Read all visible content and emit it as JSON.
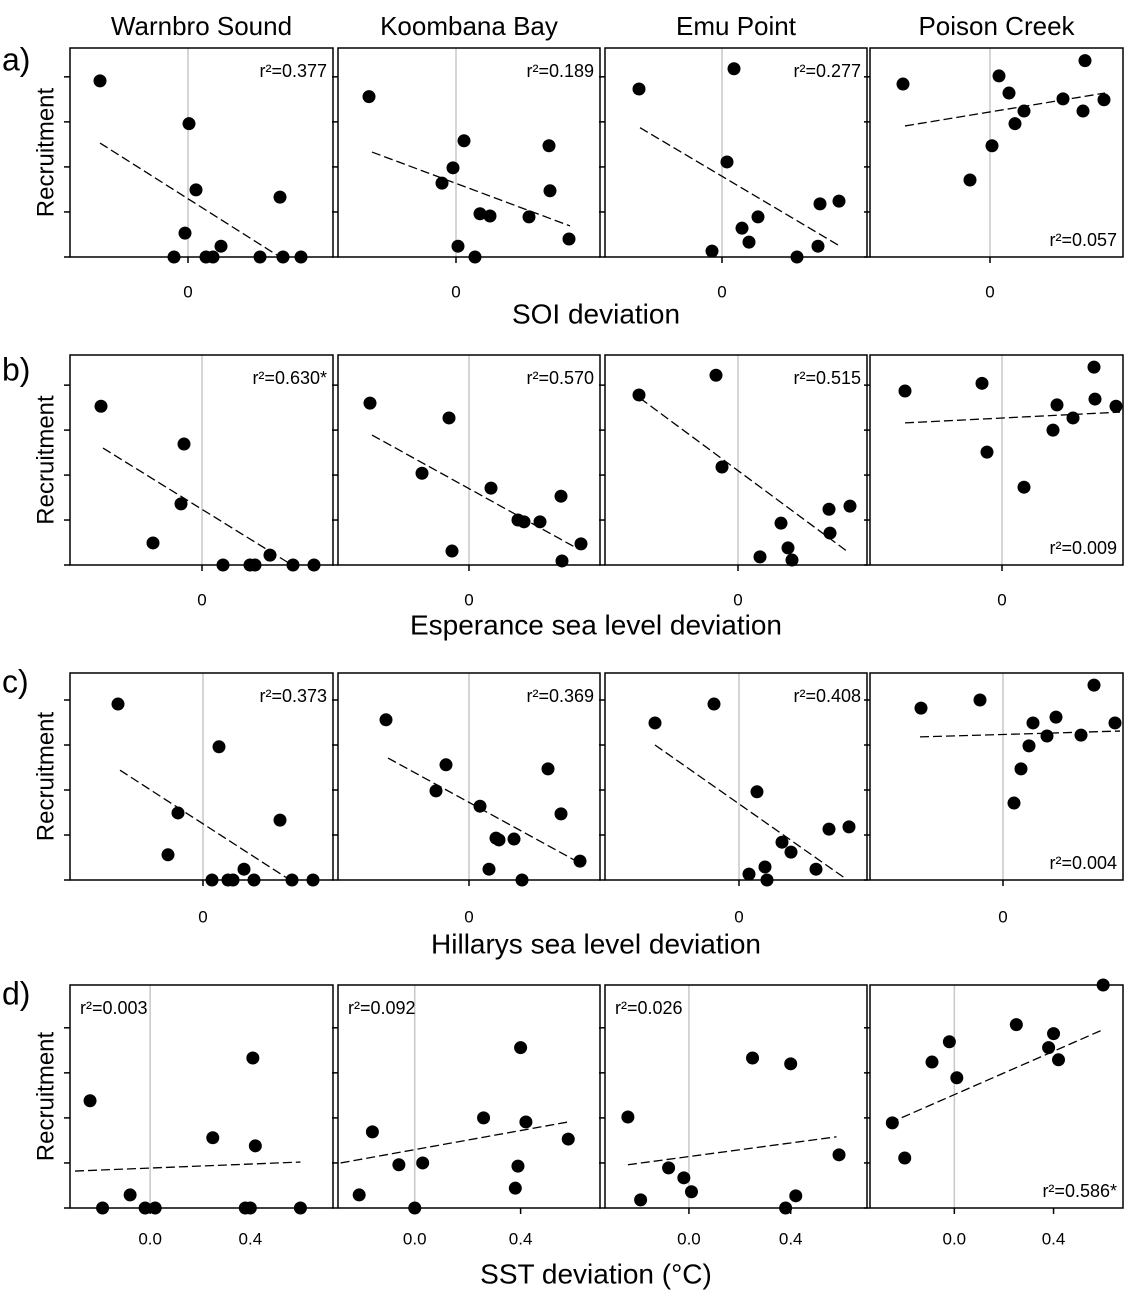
{
  "rows": [
    {
      "label": "a)",
      "ylabel": "Recruitment",
      "xlabel": "SOI deviation"
    },
    {
      "label": "b)",
      "ylabel": "Recruitment",
      "xlabel": "Esperance sea level deviation"
    },
    {
      "label": "c)",
      "ylabel": "Recruitment",
      "xlabel": "Hillarys sea level deviation"
    },
    {
      "label": "d)",
      "ylabel": "Recruitment",
      "xlabel": "SST deviation (°C)"
    }
  ],
  "chart_data": [
    {
      "type": "scatter",
      "title": "Warnbro Sound",
      "color": "#000000",
      "zero_line": true,
      "x": [
        -0.88,
        0.01,
        0.08,
        -0.03,
        -0.14,
        0.18,
        0.25,
        0.33,
        0.72,
        0.92,
        0.95,
        1.13
      ],
      "values": [
        3.91,
        2.96,
        1.49,
        0.53,
        0,
        0,
        0,
        0.24,
        0,
        1.33,
        0,
        0
      ],
      "trend": {
        "x": [
          -0.88,
          0.92
        ],
        "y": [
          2.53,
          0
        ]
      },
      "xlim": [
        -1.18,
        1.45
      ],
      "ylim": [
        0,
        4.64
      ],
      "xticks": [
        0
      ],
      "yticks": [
        0,
        1,
        2,
        3,
        4
      ],
      "annotation": "r²=0.377",
      "annotation_corner": "top-right"
    },
    {
      "type": "scatter",
      "title": "Koombana Bay",
      "color": "#000000",
      "zero_line": true,
      "x": [
        -0.87,
        0.08,
        -0.03,
        -0.14,
        0.24,
        0.34,
        0.93,
        0.94,
        0.73,
        1.13,
        0.02,
        0.19
      ],
      "values": [
        3.56,
        2.58,
        1.98,
        1.64,
        0.96,
        0.91,
        2.47,
        1.47,
        0.89,
        0.4,
        0.24,
        0
      ],
      "trend": {
        "x": [
          -0.84,
          1.14
        ],
        "y": [
          2.33,
          0.69
        ]
      },
      "xlim": [
        -1.18,
        1.44
      ],
      "ylim": [
        0,
        4.64
      ],
      "xticks": [
        0
      ],
      "yticks": [
        0,
        1,
        2,
        3,
        4
      ],
      "annotation": "r²=0.189",
      "annotation_corner": "top-right"
    },
    {
      "type": "scatter",
      "title": "Emu Point",
      "color": "#000000",
      "zero_line": true,
      "x": [
        -0.83,
        0.12,
        0.05,
        0.36,
        0.2,
        0.27,
        -0.1,
        0.75,
        0.98,
        1.17,
        0.96
      ],
      "values": [
        3.73,
        4.18,
        2.11,
        0.89,
        0.64,
        0.33,
        0.13,
        0,
        1.18,
        1.24,
        0.24
      ],
      "trend": {
        "x": [
          -0.82,
          1.18
        ],
        "y": [
          2.87,
          0.24
        ]
      },
      "xlim": [
        -1.17,
        1.45
      ],
      "ylim": [
        0,
        4.64
      ],
      "xticks": [
        0
      ],
      "yticks": [
        0,
        1,
        2,
        3,
        4
      ],
      "annotation": "r²=0.277",
      "annotation_corner": "top-right"
    },
    {
      "type": "scatter",
      "title": "Poison Creek",
      "color": "#000000",
      "zero_line": true,
      "x": [
        -0.87,
        -0.2,
        0.02,
        0.09,
        0.19,
        0.25,
        0.34,
        0.73,
        0.93,
        0.95,
        1.14
      ],
      "values": [
        3.84,
        1.71,
        2.47,
        4.02,
        3.64,
        2.96,
        3.24,
        3.51,
        3.24,
        4.36,
        3.49
      ],
      "trend": {
        "x": [
          -0.85,
          1.15
        ],
        "y": [
          2.91,
          3.64
        ]
      },
      "xlim": [
        -1.2,
        1.33
      ],
      "ylim": [
        0,
        4.64
      ],
      "xticks": [
        0
      ],
      "yticks": [
        0,
        1,
        2,
        3,
        4
      ],
      "annotation": "r²=0.057",
      "annotation_corner": "bottom-right"
    },
    {
      "type": "scatter",
      "color": "#000000",
      "zero_line": true,
      "x": [
        -1.01,
        -0.18,
        -0.21,
        -0.49,
        0.21,
        0.48,
        0.53,
        0.68,
        0.91,
        1.12
      ],
      "values": [
        3.53,
        2.69,
        1.36,
        0.49,
        0,
        0,
        0,
        0.22,
        0,
        0
      ],
      "trend": {
        "x": [
          -0.99,
          0.9
        ],
        "y": [
          2.6,
          0
        ]
      },
      "xlim": [
        -1.32,
        1.31
      ],
      "ylim": [
        0,
        4.67
      ],
      "xticks": [
        0
      ],
      "yticks": [
        0,
        1,
        2,
        3,
        4
      ],
      "annotation": "r²=0.630*",
      "annotation_corner": "top-right"
    },
    {
      "type": "scatter",
      "color": "#000000",
      "zero_line": true,
      "x": [
        -0.99,
        -0.2,
        -0.47,
        0.22,
        -0.17,
        0.49,
        0.55,
        0.71,
        0.92,
        1.12,
        0.93
      ],
      "values": [
        3.6,
        3.27,
        2.04,
        1.71,
        0.31,
        1,
        0.96,
        0.96,
        1.53,
        0.47,
        0.09
      ],
      "trend": {
        "x": [
          -0.97,
          1.09
        ],
        "y": [
          2.89,
          0.36
        ]
      },
      "xlim": [
        -1.31,
        1.31
      ],
      "ylim": [
        0,
        4.67
      ],
      "xticks": [
        0
      ],
      "yticks": [
        0,
        1,
        2,
        3,
        4
      ],
      "annotation": "r²=0.570",
      "annotation_corner": "top-right"
    },
    {
      "type": "scatter",
      "color": "#000000",
      "zero_line": true,
      "x": [
        -0.99,
        -0.22,
        -0.16,
        0.43,
        0.22,
        0.5,
        0.54,
        0.91,
        0.92,
        1.12
      ],
      "values": [
        3.78,
        4.22,
        2.18,
        0.93,
        0.18,
        0.38,
        0.11,
        1.24,
        0.71,
        1.31
      ],
      "trend": {
        "x": [
          -0.98,
          1.1
        ],
        "y": [
          3.71,
          0.29
        ]
      },
      "xlim": [
        -1.33,
        1.29
      ],
      "ylim": [
        0,
        4.67
      ],
      "xticks": [
        0
      ],
      "yticks": [
        0,
        1,
        2,
        3,
        4
      ],
      "annotation": "r²=0.515",
      "annotation_corner": "top-right"
    },
    {
      "type": "scatter",
      "color": "#000000",
      "zero_line": true,
      "x": [
        -0.97,
        -0.2,
        -0.15,
        0.22,
        0.55,
        0.51,
        0.71,
        0.92,
        0.93,
        1.14
      ],
      "values": [
        3.87,
        4.04,
        2.51,
        1.73,
        3.56,
        3,
        3.27,
        4.4,
        3.69,
        3.53
      ],
      "trend": {
        "x": [
          -0.97,
          1.18
        ],
        "y": [
          3.16,
          3.4
        ]
      },
      "xlim": [
        -1.32,
        1.21
      ],
      "ylim": [
        0,
        4.67
      ],
      "xticks": [
        0
      ],
      "yticks": [
        0,
        1,
        2,
        3,
        4
      ],
      "annotation": "r²=0.009",
      "annotation_corner": "bottom-right"
    },
    {
      "type": "scatter",
      "color": "#000000",
      "zero_line": true,
      "x": [
        -0.85,
        0.16,
        -0.25,
        -0.35,
        0.09,
        0.25,
        0.3,
        0.41,
        0.51,
        0.77,
        0.89,
        1.1
      ],
      "values": [
        3.91,
        2.96,
        1.49,
        0.56,
        0,
        0,
        0,
        0.24,
        0,
        1.33,
        0,
        0
      ],
      "trend": {
        "x": [
          -0.83,
          0.87
        ],
        "y": [
          2.44,
          0
        ]
      },
      "xlim": [
        -1.33,
        1.3
      ],
      "ylim": [
        0,
        4.6
      ],
      "xticks": [
        0
      ],
      "yticks": [
        0,
        1,
        2,
        3,
        4
      ],
      "annotation": "r²=0.373",
      "annotation_corner": "top-right"
    },
    {
      "type": "scatter",
      "color": "#000000",
      "zero_line": true,
      "x": [
        -0.83,
        -0.23,
        -0.33,
        0.11,
        0.27,
        0.3,
        0.45,
        0.79,
        0.92,
        1.11,
        0.2,
        0.53
      ],
      "values": [
        3.56,
        2.56,
        1.98,
        1.64,
        0.93,
        0.89,
        0.91,
        2.47,
        1.47,
        0.42,
        0.24,
        0
      ],
      "trend": {
        "x": [
          -0.81,
          1.09
        ],
        "y": [
          2.71,
          0.4
        ]
      },
      "xlim": [
        -1.31,
        1.31
      ],
      "ylim": [
        0,
        4.6
      ],
      "xticks": [
        0
      ],
      "yticks": [
        0,
        1,
        2,
        3,
        4
      ],
      "annotation": "r²=0.369",
      "annotation_corner": "top-right"
    },
    {
      "type": "scatter",
      "color": "#000000",
      "zero_line": true,
      "x": [
        -0.84,
        -0.25,
        0.18,
        0.43,
        0.52,
        0.26,
        0.1,
        0.28,
        0.77,
        0.9,
        1.1
      ],
      "values": [
        3.49,
        3.91,
        1.96,
        0.84,
        0.62,
        0.29,
        0.13,
        0,
        0.24,
        1.13,
        1.18
      ],
      "trend": {
        "x": [
          -0.84,
          1.06
        ],
        "y": [
          3,
          0.04
        ]
      },
      "xlim": [
        -1.34,
        1.28
      ],
      "ylim": [
        0,
        4.6
      ],
      "xticks": [
        0
      ],
      "yticks": [
        0,
        1,
        2,
        3,
        4
      ],
      "annotation": "r²=0.408",
      "annotation_corner": "top-right"
    },
    {
      "type": "scatter",
      "color": "#000000",
      "zero_line": true,
      "x": [
        -0.82,
        -0.23,
        0.11,
        0.18,
        0.26,
        0.3,
        0.44,
        0.53,
        0.78,
        0.91,
        1.12
      ],
      "values": [
        3.82,
        4,
        1.71,
        2.47,
        2.98,
        3.49,
        3.2,
        3.62,
        3.22,
        4.33,
        3.49
      ],
      "trend": {
        "x": [
          -0.83,
          1.17
        ],
        "y": [
          3.18,
          3.31
        ]
      },
      "xlim": [
        -1.33,
        1.2
      ],
      "ylim": [
        0,
        4.6
      ],
      "xticks": [
        0
      ],
      "yticks": [
        0,
        1,
        2,
        3,
        4
      ],
      "annotation": "r²=0.004",
      "annotation_corner": "bottom-right"
    },
    {
      "type": "scatter",
      "color": "#000000",
      "zero_line": true,
      "x": [
        -0.24,
        -0.19,
        -0.08,
        -0.02,
        0.02,
        0.25,
        0.41,
        0.38,
        0.4,
        0.42,
        0.6
      ],
      "values": [
        2.38,
        0,
        0.29,
        0,
        0,
        1.56,
        3.33,
        0,
        0,
        1.38,
        0
      ],
      "trend": {
        "x": [
          -0.3,
          0.6
        ],
        "y": [
          0.82,
          1.02
        ]
      },
      "xlim": [
        -0.32,
        0.73
      ],
      "ylim": [
        0,
        4.95
      ],
      "xticks": [
        {
          "value": 0,
          "label": "0.0"
        },
        {
          "value": 0.4,
          "label": "0.4"
        }
      ],
      "yticks": [
        0,
        1,
        2,
        3,
        4
      ],
      "annotation": "r²=0.003",
      "annotation_corner": "top-left"
    },
    {
      "type": "scatter",
      "color": "#000000",
      "zero_line": true,
      "x": [
        -0.21,
        -0.16,
        -0.06,
        0.03,
        0,
        0.26,
        0.4,
        0.42,
        0.39,
        0.38,
        0.58
      ],
      "values": [
        0.29,
        1.69,
        0.96,
        1,
        0,
        2,
        3.56,
        1.91,
        0.93,
        0.44,
        1.53
      ],
      "trend": {
        "x": [
          -0.28,
          0.58
        ],
        "y": [
          1,
          1.91
        ]
      },
      "xlim": [
        -0.29,
        0.7
      ],
      "ylim": [
        0,
        4.95
      ],
      "xticks": [
        {
          "value": 0,
          "label": "0.0"
        },
        {
          "value": 0.4,
          "label": "0.4"
        }
      ],
      "yticks": [
        0,
        1,
        2,
        3,
        4
      ],
      "annotation": "r²=0.092",
      "annotation_corner": "top-left"
    },
    {
      "type": "scatter",
      "color": "#000000",
      "zero_line": true,
      "x": [
        -0.24,
        -0.19,
        -0.08,
        -0.02,
        0.01,
        0.25,
        0.4,
        0.42,
        0.38,
        0.59
      ],
      "values": [
        2.02,
        0.18,
        0.89,
        0.67,
        0.36,
        3.33,
        3.2,
        0.27,
        0,
        1.18
      ],
      "trend": {
        "x": [
          -0.24,
          0.58
        ],
        "y": [
          0.96,
          1.58
        ]
      },
      "xlim": [
        -0.33,
        0.7
      ],
      "ylim": [
        0,
        4.95
      ],
      "xticks": [
        {
          "value": 0,
          "label": "0.0"
        },
        {
          "value": 0.4,
          "label": "0.4"
        }
      ],
      "yticks": [
        0,
        1,
        2,
        3,
        4
      ],
      "annotation": "r²=0.026",
      "annotation_corner": "top-left"
    },
    {
      "type": "scatter",
      "color": "#000000",
      "zero_line": true,
      "x": [
        -0.25,
        -0.2,
        -0.09,
        -0.02,
        0.01,
        0.25,
        0.4,
        0.38,
        0.42,
        0.6
      ],
      "values": [
        1.89,
        1.11,
        3.24,
        3.69,
        2.89,
        4.07,
        3.87,
        3.56,
        3.29,
        4.95
      ],
      "trend": {
        "x": [
          -0.26,
          0.6
        ],
        "y": [
          1.89,
          3.96
        ]
      },
      "xlim": [
        -0.34,
        0.68
      ],
      "ylim": [
        0,
        4.95
      ],
      "xticks": [
        {
          "value": 0,
          "label": "0.0"
        },
        {
          "value": 0.4,
          "label": "0.4"
        }
      ],
      "yticks": [
        0,
        1,
        2,
        3,
        4
      ],
      "annotation": "r²=0.586*",
      "annotation_corner": "bottom-right"
    }
  ]
}
